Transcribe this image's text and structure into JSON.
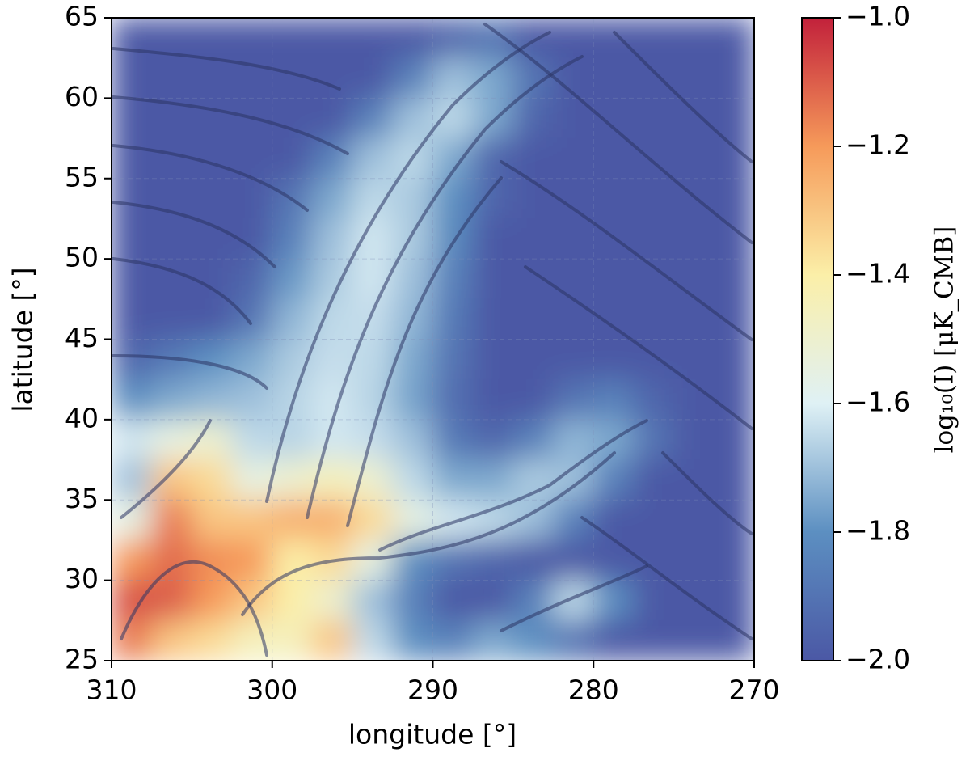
{
  "chart_data": {
    "type": "heatmap",
    "xlabel": "longitude [°]",
    "ylabel": "latitude [°]",
    "x": [
      308.75,
      306.25,
      303.75,
      301.25,
      298.75,
      296.25,
      293.75,
      291.25,
      288.75,
      286.25,
      283.75,
      281.25,
      278.75,
      276.25,
      273.75,
      271.25
    ],
    "y": [
      63.75,
      61.25,
      58.75,
      56.25,
      53.75,
      51.25,
      48.75,
      46.25,
      43.75,
      41.25,
      38.75,
      36.25,
      33.75,
      31.25,
      28.75,
      26.25
    ],
    "z": [
      [
        -2,
        -2,
        -2,
        -2,
        -2,
        -2,
        -2,
        -2,
        -1.95,
        -1.9,
        -2,
        -2,
        -2,
        -2,
        -2,
        -2
      ],
      [
        -2,
        -2,
        -2,
        -2,
        -2,
        -2,
        -2,
        -1.85,
        -1.7,
        -1.75,
        -1.9,
        -2,
        -2,
        -2,
        -2,
        -2
      ],
      [
        -2,
        -2,
        -2,
        -2,
        -2,
        -2,
        -1.85,
        -1.7,
        -1.65,
        -1.75,
        -1.95,
        -2,
        -2,
        -2,
        -2,
        -2
      ],
      [
        -2,
        -2,
        -2,
        -2,
        -2,
        -1.85,
        -1.7,
        -1.65,
        -1.75,
        -1.95,
        -2,
        -2,
        -2,
        -2,
        -2,
        -2
      ],
      [
        -2,
        -2,
        -2,
        -2,
        -1.9,
        -1.75,
        -1.65,
        -1.68,
        -1.8,
        -1.95,
        -2,
        -2,
        -2,
        -2,
        -2,
        -2
      ],
      [
        -2,
        -2,
        -2,
        -2,
        -1.85,
        -1.7,
        -1.62,
        -1.68,
        -1.82,
        -2,
        -2,
        -2,
        -2,
        -2,
        -2,
        -2
      ],
      [
        -2,
        -2,
        -2,
        -1.95,
        -1.78,
        -1.68,
        -1.62,
        -1.7,
        -1.85,
        -2,
        -2,
        -2,
        -2,
        -2,
        -2,
        -2
      ],
      [
        -2,
        -2,
        -2,
        -1.9,
        -1.72,
        -1.65,
        -1.64,
        -1.72,
        -1.88,
        -2,
        -2,
        -2,
        -2,
        -2,
        -2,
        -2
      ],
      [
        -1.95,
        -1.88,
        -1.8,
        -1.75,
        -1.68,
        -1.64,
        -1.65,
        -1.75,
        -1.9,
        -2,
        -2,
        -2,
        -2,
        -2,
        -2,
        -2
      ],
      [
        -1.8,
        -1.75,
        -1.72,
        -1.7,
        -1.66,
        -1.62,
        -1.66,
        -1.76,
        -1.92,
        -2,
        -2,
        -1.9,
        -1.85,
        -1.95,
        -2,
        -2
      ],
      [
        -1.62,
        -1.55,
        -1.5,
        -1.65,
        -1.66,
        -1.62,
        -1.64,
        -1.7,
        -1.88,
        -1.95,
        -1.85,
        -1.72,
        -1.75,
        -1.9,
        -2,
        -2
      ],
      [
        -1.7,
        -1.3,
        -1.35,
        -1.55,
        -1.5,
        -1.45,
        -1.5,
        -1.65,
        -1.75,
        -1.75,
        -1.68,
        -1.7,
        -1.85,
        -2,
        -2,
        -2
      ],
      [
        -1.55,
        -1.15,
        -1.3,
        -1.3,
        -1.25,
        -1.25,
        -1.35,
        -1.55,
        -1.62,
        -1.65,
        -1.7,
        -1.85,
        -2,
        -2,
        -2,
        -2
      ],
      [
        -1.2,
        -1.12,
        -1.18,
        -1.2,
        -1.4,
        -1.35,
        -1.55,
        -1.8,
        -1.9,
        -1.95,
        -2,
        -2,
        -2,
        -2,
        -2,
        -2
      ],
      [
        -1.08,
        -1.1,
        -1.2,
        -1.3,
        -1.4,
        -1.5,
        -1.7,
        -1.85,
        -2,
        -2,
        -1.85,
        -1.65,
        -1.8,
        -2,
        -2,
        -2
      ],
      [
        -1.15,
        -1.3,
        -1.35,
        -1.45,
        -1.45,
        -1.3,
        -1.65,
        -1.8,
        -1.85,
        -1.75,
        -1.8,
        -1.9,
        -2,
        -2,
        -2,
        -2
      ]
    ],
    "xlim": [
      310,
      270
    ],
    "ylim": [
      25,
      65
    ],
    "xticks": [
      310,
      300,
      290,
      280,
      270
    ],
    "yticks": [
      25,
      30,
      35,
      40,
      45,
      50,
      55,
      60,
      65
    ],
    "grid": true,
    "colorbar": {
      "label": "log₁₀(I) [μK_CMB]",
      "lim": [
        -2,
        -1
      ],
      "ticks": [
        {
          "value": -2,
          "label": "−2.0"
        },
        {
          "value": -1.8,
          "label": "−1.8"
        },
        {
          "value": -1.6,
          "label": "−1.6"
        },
        {
          "value": -1.4,
          "label": "−1.4"
        },
        {
          "value": -1.2,
          "label": "−1.2"
        },
        {
          "value": -1,
          "label": "−1.0"
        }
      ],
      "colors": [
        "#4b58a5",
        "#5c8fc1",
        "#dff1f5",
        "#fbefa8",
        "#f69a5a",
        "#c2213b"
      ]
    }
  }
}
